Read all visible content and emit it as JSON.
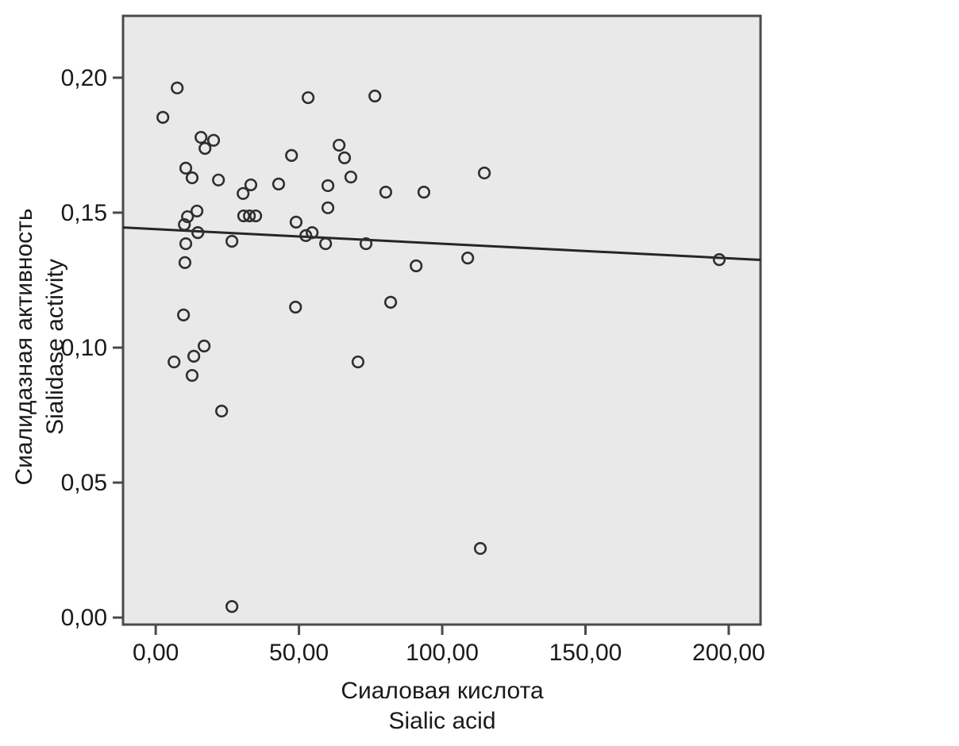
{
  "chart_data": {
    "type": "scatter",
    "title": "",
    "xlabel_line1": "Сиаловая кислота",
    "xlabel_line2": "Sialic acid",
    "ylabel_line1": "Сиалидазная активность",
    "ylabel_line2": "Sialidase activity",
    "xlim": [
      -11.4,
      211.1
    ],
    "ylim": [
      -0.0026,
      0.2229
    ],
    "grid": false,
    "legend": "none",
    "x_ticks": {
      "values": [
        0,
        50,
        100,
        150,
        200
      ],
      "labels": [
        "0,00",
        "50,00",
        "100,00",
        "150,00",
        "200,00"
      ]
    },
    "y_ticks": {
      "values": [
        0,
        0.05,
        0.1,
        0.15,
        0.2
      ],
      "labels": [
        "0,00",
        "0,05",
        "0,10",
        "0,15",
        "0,20"
      ]
    },
    "points": [
      [
        7.5,
        0.1962
      ],
      [
        2.5,
        0.1853
      ],
      [
        15.8,
        0.1779
      ],
      [
        20.2,
        0.1768
      ],
      [
        17.2,
        0.1738
      ],
      [
        53.2,
        0.1926
      ],
      [
        76.5,
        0.1932
      ],
      [
        47.4,
        0.1712
      ],
      [
        64.0,
        0.175
      ],
      [
        65.9,
        0.1703
      ],
      [
        10.5,
        0.1665
      ],
      [
        12.7,
        0.1629
      ],
      [
        21.9,
        0.1621
      ],
      [
        33.2,
        0.1603
      ],
      [
        30.5,
        0.1571
      ],
      [
        42.9,
        0.1606
      ],
      [
        60.1,
        0.16
      ],
      [
        68.1,
        0.1632
      ],
      [
        80.3,
        0.1576
      ],
      [
        93.6,
        0.1576
      ],
      [
        60.1,
        0.1518
      ],
      [
        14.4,
        0.1506
      ],
      [
        11.1,
        0.1485
      ],
      [
        30.7,
        0.1488
      ],
      [
        32.7,
        0.1488
      ],
      [
        34.9,
        0.1488
      ],
      [
        10.0,
        0.1456
      ],
      [
        49.0,
        0.1465
      ],
      [
        14.7,
        0.1426
      ],
      [
        52.4,
        0.1415
      ],
      [
        54.6,
        0.1426
      ],
      [
        26.6,
        0.1394
      ],
      [
        59.3,
        0.1385
      ],
      [
        73.4,
        0.1385
      ],
      [
        10.5,
        0.1385
      ],
      [
        10.2,
        0.1315
      ],
      [
        90.9,
        0.1303
      ],
      [
        48.8,
        0.115
      ],
      [
        82.0,
        0.1168
      ],
      [
        9.7,
        0.1121
      ],
      [
        114.7,
        0.1647
      ],
      [
        108.9,
        0.1332
      ],
      [
        196.7,
        0.1326
      ],
      [
        16.9,
        0.1006
      ],
      [
        13.3,
        0.0968
      ],
      [
        6.4,
        0.0947
      ],
      [
        12.7,
        0.0897
      ],
      [
        23.0,
        0.0765
      ],
      [
        70.6,
        0.0947
      ],
      [
        26.6,
        0.0041
      ],
      [
        113.3,
        0.0256
      ]
    ],
    "fit_line": {
      "x1": -11.4,
      "y1": 0.1445,
      "x2": 211.1,
      "y2": 0.1325
    },
    "colors": {
      "page_bg": "#ffffff",
      "plot_bg": "#e9e9e9",
      "frame": "#4a4a4a",
      "marker_stroke": "#2e2e2e",
      "fit_line": "#262626",
      "text": "#1a1a1a"
    }
  }
}
